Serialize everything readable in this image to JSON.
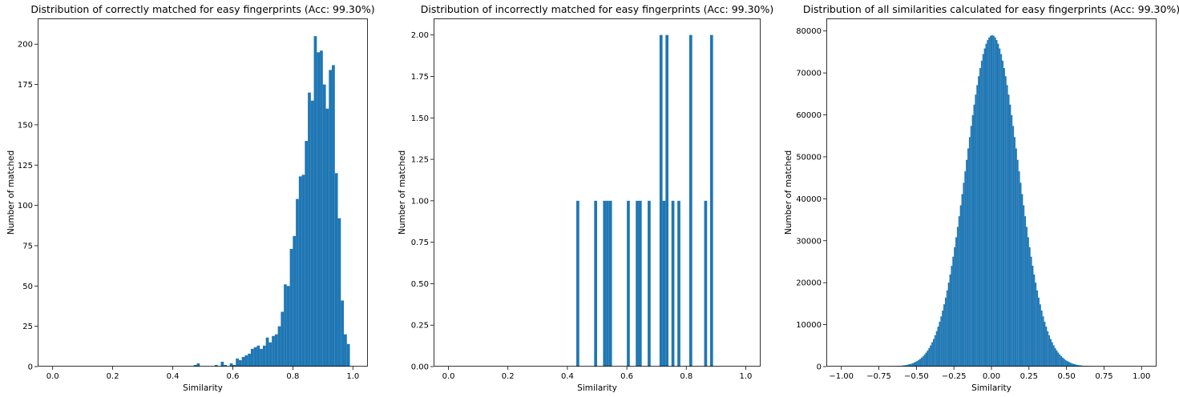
{
  "chart_data": [
    {
      "type": "bar",
      "title": "Distribution of correctly matched for easy fingerprints (Acc: 99.30%)",
      "xlabel": "Similarity",
      "ylabel": "Number of matched",
      "xlim": [
        -0.05,
        1.05
      ],
      "ylim": [
        0,
        216
      ],
      "xticks": [
        0.0,
        0.2,
        0.4,
        0.6,
        0.8,
        1.0
      ],
      "xtick_labels": [
        "0.0",
        "0.2",
        "0.4",
        "0.6",
        "0.8",
        "1.0"
      ],
      "yticks": [
        0,
        25,
        50,
        75,
        100,
        125,
        150,
        175,
        200
      ],
      "ytick_labels": [
        "0",
        "25",
        "50",
        "75",
        "100",
        "125",
        "150",
        "175",
        "200"
      ],
      "bin_width": 0.01,
      "bins_x": [
        0.47,
        0.48,
        0.49,
        0.5,
        0.51,
        0.52,
        0.53,
        0.54,
        0.55,
        0.56,
        0.57,
        0.58,
        0.59,
        0.6,
        0.61,
        0.62,
        0.63,
        0.64,
        0.65,
        0.66,
        0.67,
        0.68,
        0.69,
        0.7,
        0.71,
        0.72,
        0.73,
        0.74,
        0.75,
        0.76,
        0.77,
        0.78,
        0.79,
        0.8,
        0.81,
        0.82,
        0.83,
        0.84,
        0.85,
        0.86,
        0.87,
        0.88,
        0.89,
        0.9,
        0.91,
        0.92,
        0.93,
        0.94,
        0.95,
        0.96,
        0.97,
        0.98
      ],
      "values": [
        1,
        2,
        0,
        0,
        0,
        0,
        0,
        1,
        0,
        3,
        1,
        0,
        2,
        1,
        5,
        4,
        6,
        7,
        8,
        11,
        12,
        13,
        11,
        13,
        18,
        15,
        19,
        20,
        25,
        34,
        51,
        50,
        73,
        81,
        104,
        118,
        119,
        140,
        170,
        165,
        205,
        195,
        196,
        175,
        160,
        184,
        187,
        120,
        92,
        41,
        20,
        14
      ],
      "color": "#1f77b4"
    },
    {
      "type": "bar",
      "title": "Distribution of incorrectly matched for easy fingerprints (Acc: 99.30%)",
      "xlabel": "Similarity",
      "ylabel": "Number of matched",
      "xlim": [
        -0.05,
        1.05
      ],
      "ylim": [
        0,
        2.1
      ],
      "xticks": [
        0.0,
        0.2,
        0.4,
        0.6,
        0.8,
        1.0
      ],
      "xtick_labels": [
        "0.0",
        "0.2",
        "0.4",
        "0.6",
        "0.8",
        "1.0"
      ],
      "yticks": [
        0,
        0.25,
        0.5,
        0.75,
        1.0,
        1.25,
        1.5,
        1.75,
        2.0
      ],
      "ytick_labels": [
        "0.00",
        "0.25",
        "0.50",
        "0.75",
        "1.00",
        "1.25",
        "1.50",
        "1.75",
        "2.00"
      ],
      "bin_width": 0.01,
      "bins_x": [
        0.43,
        0.49,
        0.52,
        0.53,
        0.54,
        0.6,
        0.63,
        0.64,
        0.67,
        0.71,
        0.72,
        0.73,
        0.75,
        0.77,
        0.81,
        0.86,
        0.88
      ],
      "values": [
        1,
        1,
        1,
        1,
        1,
        1,
        1,
        1,
        1,
        2,
        1,
        2,
        1,
        1,
        2,
        1,
        2
      ],
      "color": "#1f77b4"
    },
    {
      "type": "bar",
      "title": "Distribution of all similarities calculated for easy fingerprints (Acc: 99.30%)",
      "xlabel": "Similarity",
      "ylabel": "Number of matched",
      "xlim": [
        -1.1,
        1.1
      ],
      "ylim": [
        0,
        83000
      ],
      "xticks": [
        -1.0,
        -0.75,
        -0.5,
        -0.25,
        0.0,
        0.25,
        0.5,
        0.75,
        1.0
      ],
      "xtick_labels": [
        "−1.00",
        "−0.75",
        "−0.50",
        "−0.25",
        "0.00",
        "0.25",
        "0.50",
        "0.75",
        "1.00"
      ],
      "yticks": [
        0,
        10000,
        20000,
        30000,
        40000,
        50000,
        60000,
        70000,
        80000
      ],
      "ytick_labels": [
        "0",
        "10000",
        "20000",
        "30000",
        "40000",
        "50000",
        "60000",
        "70000",
        "80000"
      ],
      "bin_width": 0.01,
      "distribution": {
        "shape": "normal",
        "peak": 79000,
        "center": 0.0,
        "std": 0.175,
        "xmin": -0.75,
        "xmax": 0.97
      },
      "color": "#1f77b4"
    }
  ]
}
